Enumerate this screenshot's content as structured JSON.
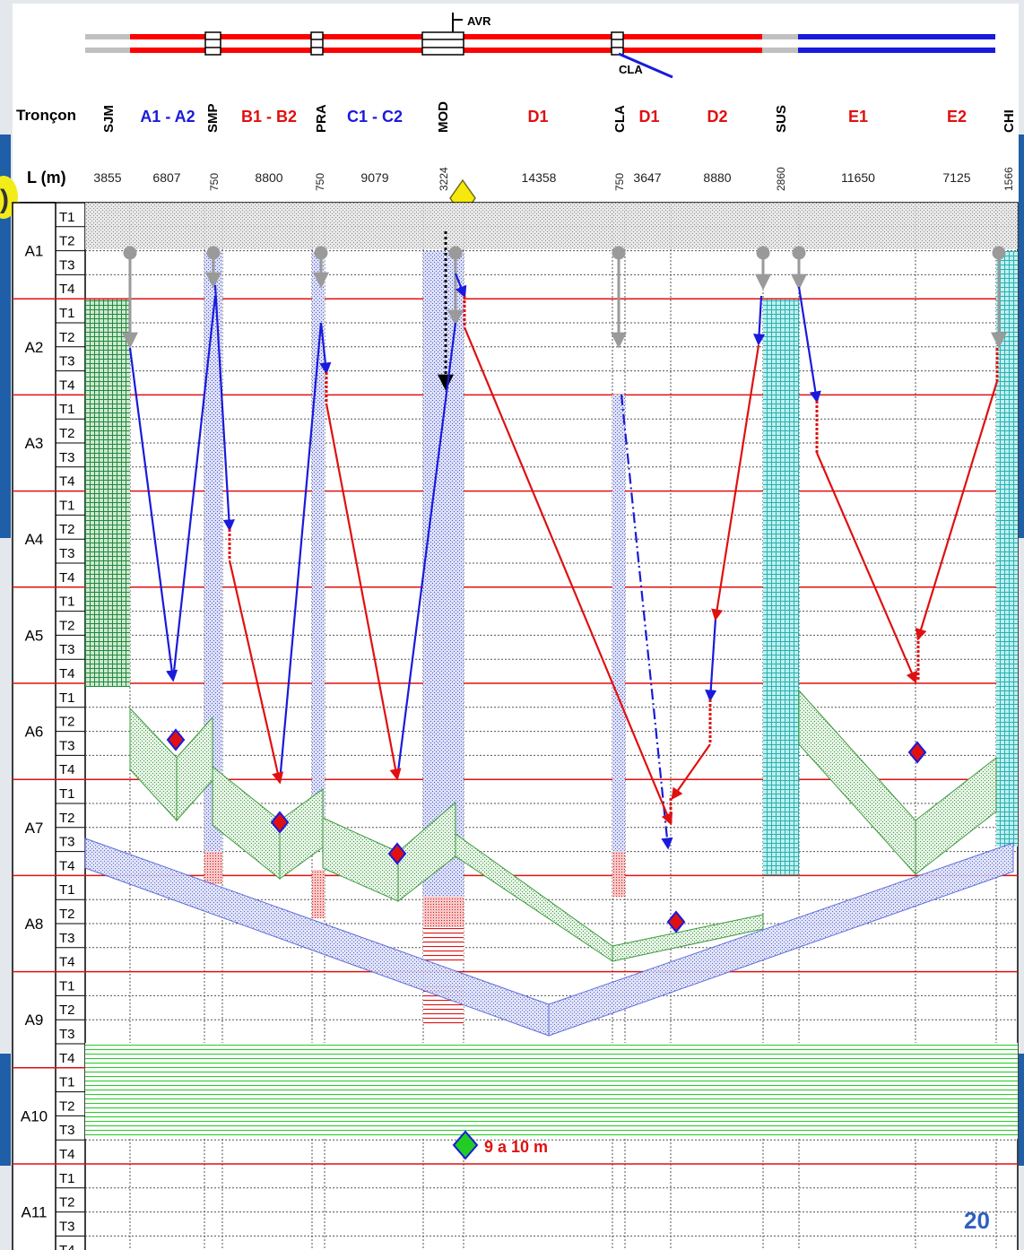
{
  "header": {
    "track_label": "Tronçon",
    "length_label": "L (m)",
    "sections": [
      {
        "name": "SJM",
        "rotated": true,
        "color": "#000000",
        "length": "3855",
        "length_rotated": false
      },
      {
        "name": "A1 - A2",
        "rotated": false,
        "color": "#1a1adc",
        "length": "6807",
        "length_rotated": false
      },
      {
        "name": "SMP",
        "rotated": true,
        "color": "#000000",
        "length": "750",
        "length_rotated": true
      },
      {
        "name": "B1 - B2",
        "rotated": false,
        "color": "#e01010",
        "length": "8800",
        "length_rotated": false
      },
      {
        "name": "PRA",
        "rotated": true,
        "color": "#000000",
        "length": "750",
        "length_rotated": true
      },
      {
        "name": "C1 - C2",
        "rotated": false,
        "color": "#1a1adc",
        "length": "9079",
        "length_rotated": false
      },
      {
        "name": "MOD",
        "rotated": true,
        "color": "#000000",
        "length": "3224",
        "length_rotated": true
      },
      {
        "name": "D1",
        "rotated": false,
        "color": "#e01010",
        "length": "14358",
        "length_rotated": false
      },
      {
        "name": "CLA",
        "rotated": true,
        "color": "#000000",
        "length": "750",
        "length_rotated": true
      },
      {
        "name": "D1",
        "rotated": false,
        "color": "#e01010",
        "length": "3647",
        "length_rotated": false
      },
      {
        "name": "D2",
        "rotated": false,
        "color": "#e01010",
        "length": "8880",
        "length_rotated": false
      },
      {
        "name": "SUS",
        "rotated": true,
        "color": "#000000",
        "length": "2860",
        "length_rotated": true
      },
      {
        "name": "E1",
        "rotated": false,
        "color": "#e01010",
        "length": "11650",
        "length_rotated": false
      },
      {
        "name": "E2",
        "rotated": false,
        "color": "#e01010",
        "length": "7125",
        "length_rotated": false
      },
      {
        "name": "CHI",
        "rotated": true,
        "color": "#000000",
        "length": "1566",
        "length_rotated": true
      }
    ]
  },
  "top_labels": {
    "avr": "AVR",
    "cla": "CLA"
  },
  "years": [
    "A1",
    "A2",
    "A3",
    "A4",
    "A5",
    "A6",
    "A7",
    "A8",
    "A9",
    "A10",
    "A11"
  ],
  "quarters": [
    "T1",
    "T2",
    "T3",
    "T4"
  ],
  "annotation": "9 a 10 m",
  "page_number": "20",
  "left_marker": ")",
  "colors": {
    "red": "#e01010",
    "blue": "#1a1adc",
    "green": "#2e9a3e",
    "gray": "#9a9a9a",
    "cyan": "#48c4c4",
    "yellow": "#f2ec1a"
  }
}
